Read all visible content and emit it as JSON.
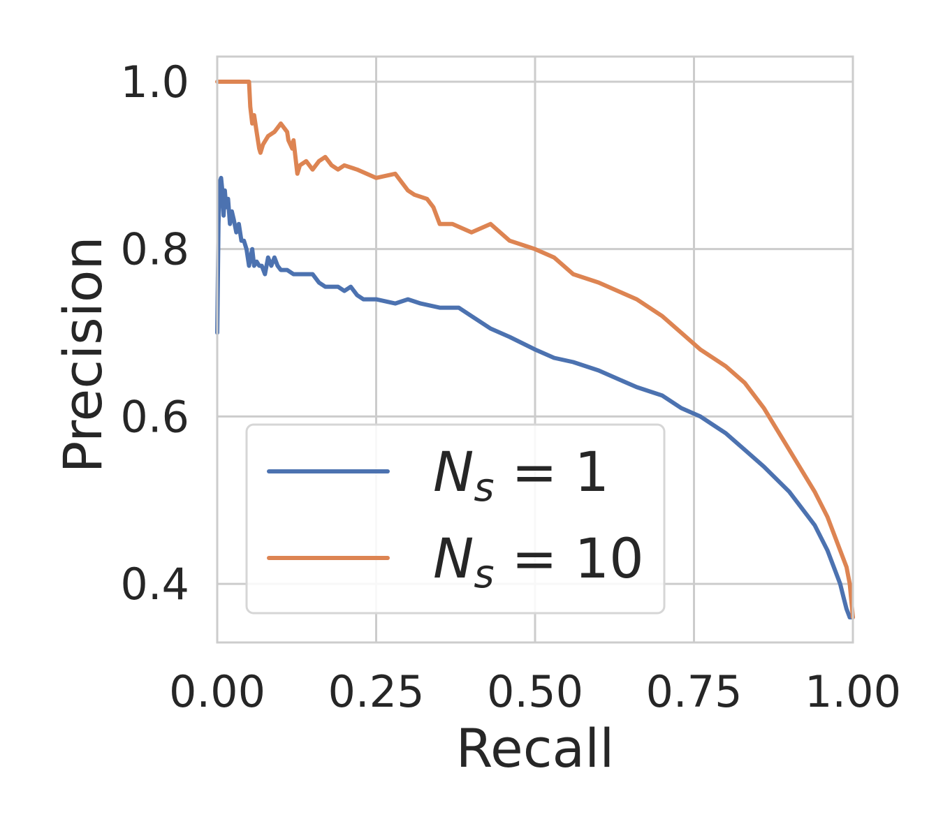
{
  "chart_data": {
    "type": "line",
    "xlabel": "Recall",
    "ylabel": "Precision",
    "xlim": [
      0.0,
      1.0
    ],
    "ylim": [
      0.33,
      1.03
    ],
    "x_ticks": [
      "0.00",
      "0.25",
      "0.50",
      "0.75",
      "1.00"
    ],
    "y_ticks": [
      "0.4",
      "0.6",
      "0.8",
      "1.0"
    ],
    "grid": true,
    "legend_position": "lower-left",
    "series": [
      {
        "name": "N_s = 1",
        "legend_main": "N",
        "legend_sub": "s",
        "legend_rest": " = 1",
        "color": "#4c72b0",
        "x": [
          0.0,
          0.002,
          0.004,
          0.006,
          0.008,
          0.01,
          0.012,
          0.014,
          0.017,
          0.02,
          0.023,
          0.026,
          0.03,
          0.034,
          0.038,
          0.042,
          0.046,
          0.05,
          0.055,
          0.058,
          0.062,
          0.066,
          0.07,
          0.075,
          0.08,
          0.085,
          0.09,
          0.095,
          0.1,
          0.11,
          0.12,
          0.13,
          0.14,
          0.15,
          0.16,
          0.17,
          0.18,
          0.19,
          0.2,
          0.21,
          0.22,
          0.23,
          0.25,
          0.28,
          0.3,
          0.32,
          0.35,
          0.38,
          0.4,
          0.43,
          0.46,
          0.5,
          0.53,
          0.56,
          0.6,
          0.63,
          0.66,
          0.7,
          0.73,
          0.76,
          0.8,
          0.83,
          0.86,
          0.88,
          0.9,
          0.92,
          0.94,
          0.96,
          0.97,
          0.98,
          0.985,
          0.99,
          0.995,
          1.0
        ],
        "y": [
          0.7,
          0.83,
          0.88,
          0.885,
          0.87,
          0.84,
          0.87,
          0.85,
          0.86,
          0.83,
          0.845,
          0.835,
          0.82,
          0.83,
          0.81,
          0.81,
          0.8,
          0.78,
          0.8,
          0.78,
          0.785,
          0.78,
          0.78,
          0.77,
          0.79,
          0.78,
          0.79,
          0.78,
          0.775,
          0.775,
          0.77,
          0.77,
          0.77,
          0.77,
          0.76,
          0.755,
          0.755,
          0.755,
          0.75,
          0.755,
          0.745,
          0.74,
          0.74,
          0.735,
          0.74,
          0.735,
          0.73,
          0.73,
          0.72,
          0.705,
          0.695,
          0.68,
          0.67,
          0.665,
          0.655,
          0.645,
          0.635,
          0.625,
          0.61,
          0.6,
          0.58,
          0.56,
          0.54,
          0.525,
          0.51,
          0.49,
          0.47,
          0.44,
          0.42,
          0.4,
          0.385,
          0.37,
          0.36,
          0.36
        ]
      },
      {
        "name": "N_s = 10",
        "legend_main": "N",
        "legend_sub": "s",
        "legend_rest": " = 10",
        "color": "#dd8452",
        "x": [
          0.0,
          0.02,
          0.04,
          0.05,
          0.052,
          0.055,
          0.058,
          0.062,
          0.066,
          0.068,
          0.072,
          0.08,
          0.09,
          0.1,
          0.11,
          0.112,
          0.118,
          0.12,
          0.126,
          0.13,
          0.14,
          0.15,
          0.16,
          0.17,
          0.18,
          0.19,
          0.2,
          0.22,
          0.25,
          0.28,
          0.3,
          0.31,
          0.33,
          0.34,
          0.35,
          0.37,
          0.4,
          0.43,
          0.46,
          0.5,
          0.53,
          0.56,
          0.6,
          0.63,
          0.66,
          0.7,
          0.73,
          0.76,
          0.8,
          0.83,
          0.86,
          0.88,
          0.9,
          0.92,
          0.94,
          0.96,
          0.97,
          0.98,
          0.99,
          0.995,
          1.0
        ],
        "y": [
          1.0,
          1.0,
          1.0,
          1.0,
          0.97,
          0.95,
          0.96,
          0.94,
          0.92,
          0.915,
          0.925,
          0.935,
          0.94,
          0.95,
          0.94,
          0.93,
          0.92,
          0.93,
          0.89,
          0.9,
          0.905,
          0.895,
          0.905,
          0.91,
          0.9,
          0.895,
          0.9,
          0.895,
          0.885,
          0.89,
          0.87,
          0.865,
          0.86,
          0.85,
          0.83,
          0.83,
          0.82,
          0.83,
          0.81,
          0.8,
          0.79,
          0.77,
          0.76,
          0.75,
          0.74,
          0.72,
          0.7,
          0.68,
          0.66,
          0.64,
          0.61,
          0.585,
          0.56,
          0.535,
          0.51,
          0.48,
          0.46,
          0.44,
          0.42,
          0.4,
          0.36
        ]
      }
    ]
  }
}
